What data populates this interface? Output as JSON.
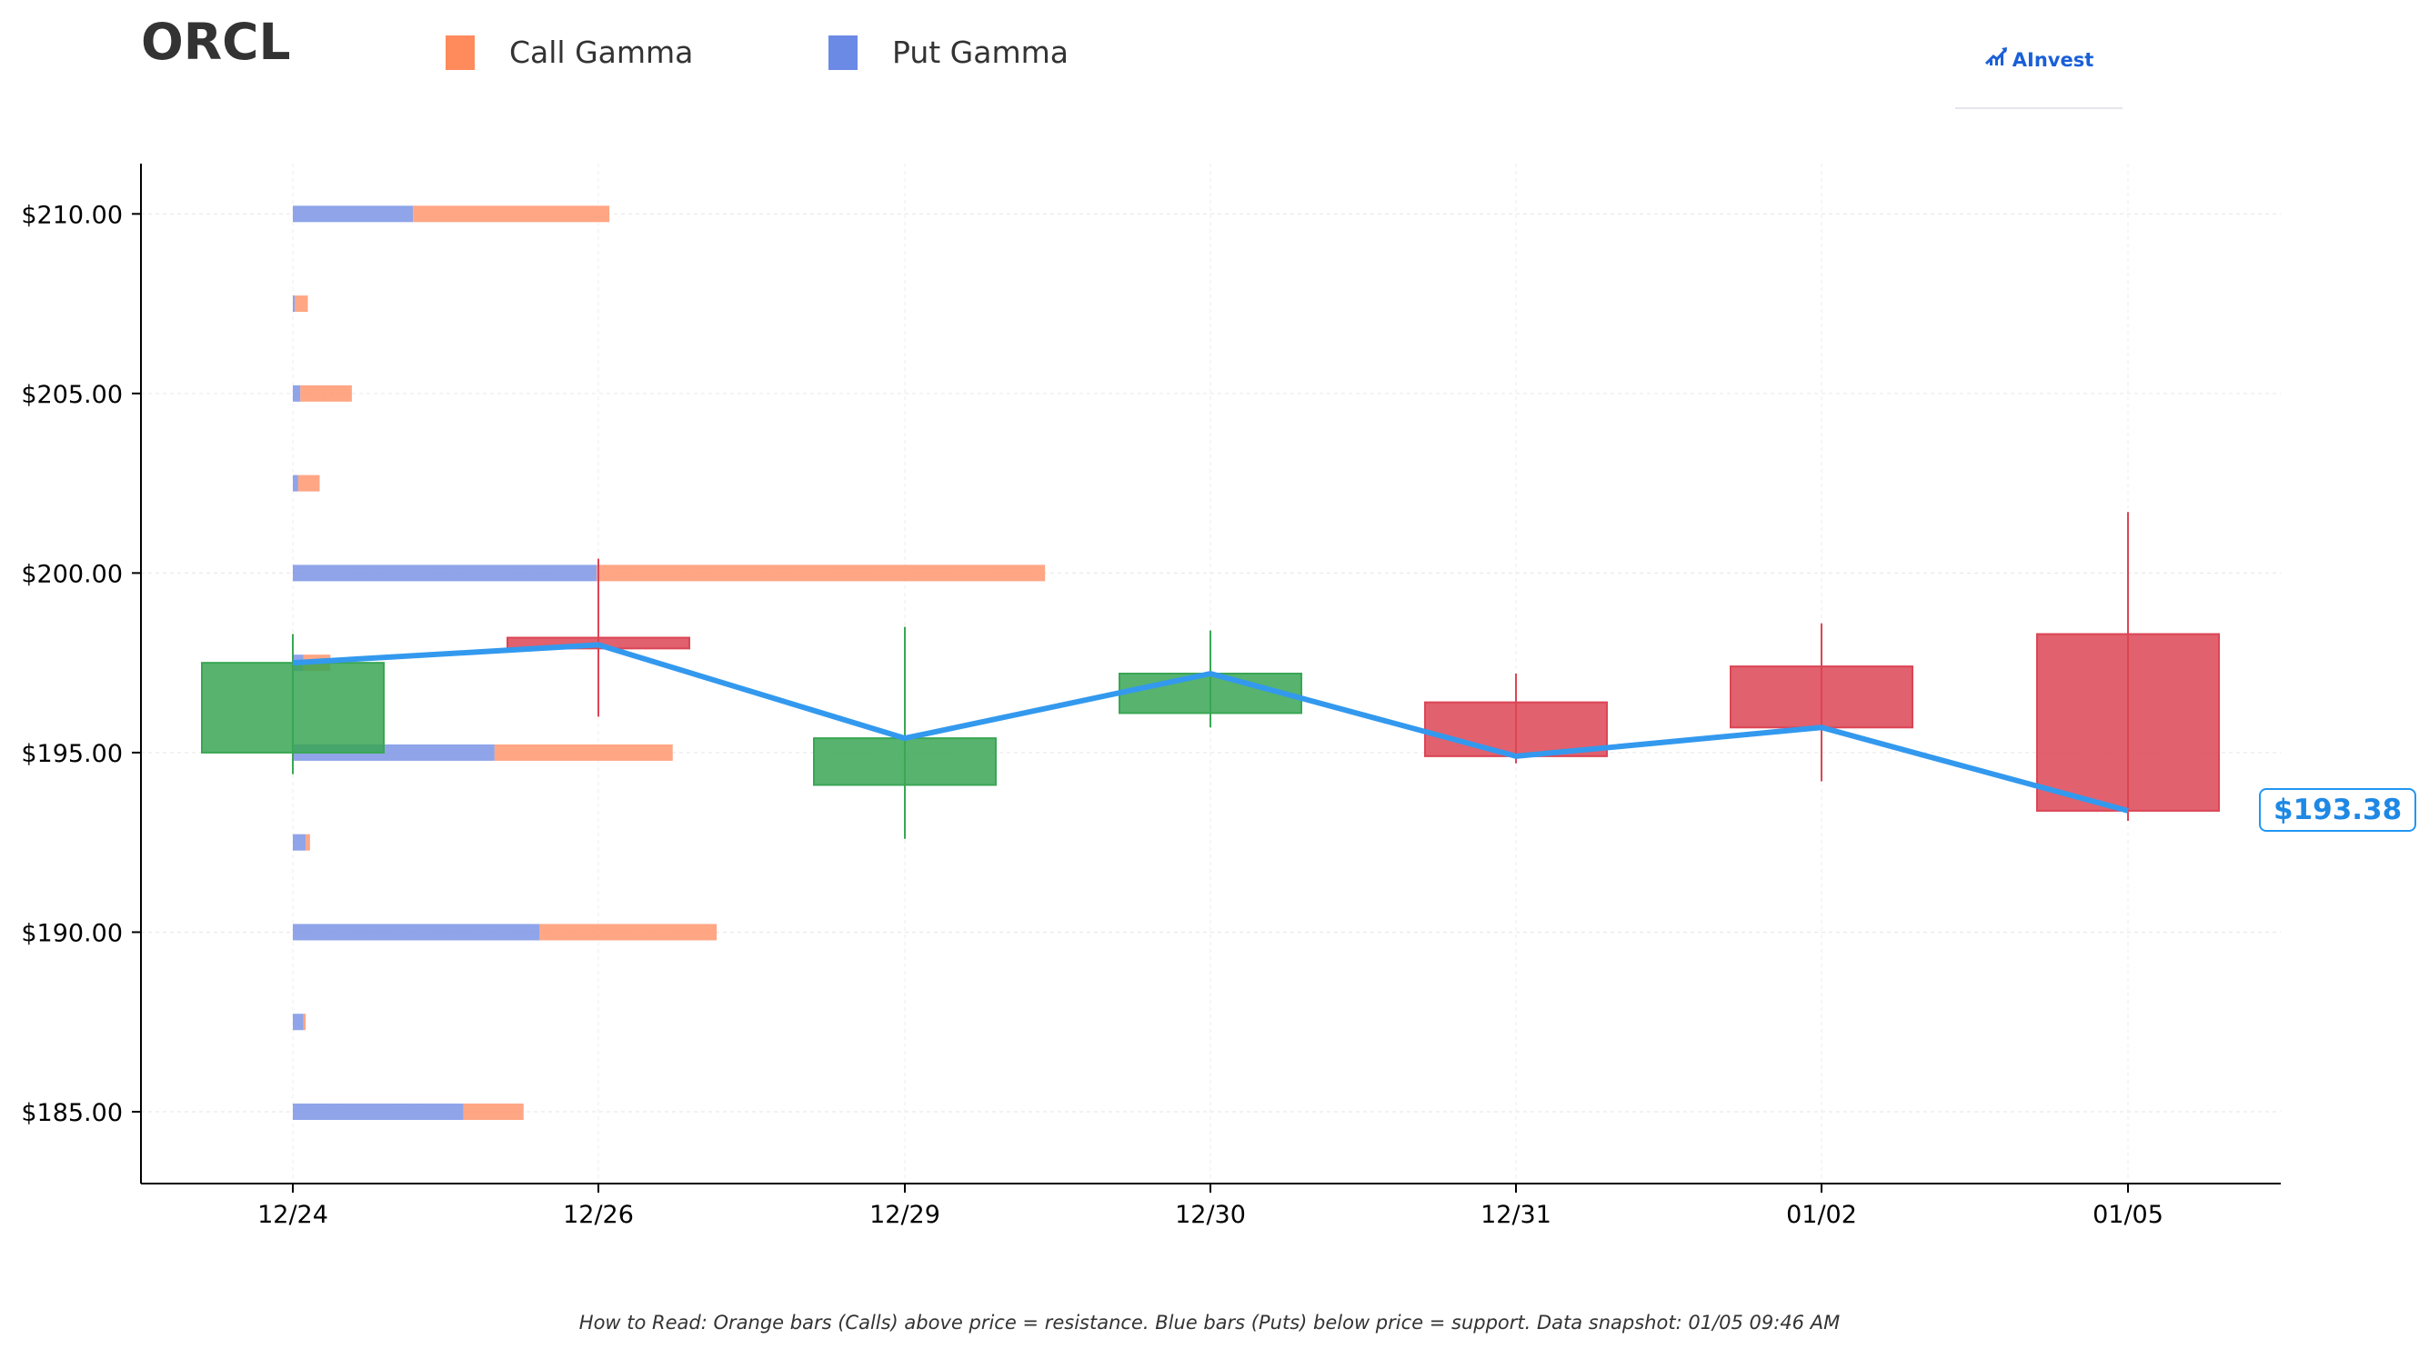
{
  "ticker": "ORCL",
  "legend": [
    {
      "label": "Call Gamma",
      "color": "#ff8a5c"
    },
    {
      "label": "Put Gamma",
      "color": "#6b8ae6"
    }
  ],
  "brand": {
    "name": "AInvest",
    "icon": "chart-bars-icon",
    "color": "#1a5fd8"
  },
  "footer_note": "How to Read: Orange bars (Calls) above price = resistance. Blue bars (Puts) below price = support. Data snapshot: 01/05 09:46 AM",
  "last_price_label": "$193.38",
  "chart_data": {
    "type": "candlestick",
    "categories": [
      "12/24",
      "12/26",
      "12/29",
      "12/30",
      "12/31",
      "01/02",
      "01/05"
    ],
    "ohlc": [
      {
        "date": "12/24",
        "open": 195.0,
        "high": 198.3,
        "low": 194.4,
        "close": 197.5
      },
      {
        "date": "12/26",
        "open": 198.2,
        "high": 200.4,
        "low": 196.0,
        "close": 197.9
      },
      {
        "date": "12/29",
        "open": 194.1,
        "high": 198.5,
        "low": 192.6,
        "close": 195.4
      },
      {
        "date": "12/30",
        "open": 196.1,
        "high": 198.4,
        "low": 195.7,
        "close": 197.2
      },
      {
        "date": "12/31",
        "open": 196.4,
        "high": 197.2,
        "low": 194.7,
        "close": 194.9
      },
      {
        "date": "01/02",
        "open": 197.4,
        "high": 198.6,
        "low": 194.2,
        "close": 195.7
      },
      {
        "date": "01/05",
        "open": 198.3,
        "high": 201.7,
        "low": 193.1,
        "close": 193.38
      }
    ],
    "price_line": [
      197.5,
      198.0,
      195.4,
      197.2,
      194.9,
      195.7,
      193.38
    ],
    "gamma_strikes": [
      185,
      187.5,
      190,
      192.5,
      195,
      197.5,
      200,
      202.5,
      205,
      207.5,
      210
    ],
    "gamma_series": [
      {
        "name": "Put Gamma",
        "values": [
          1.59,
          0.1,
          2.3,
          0.12,
          1.88,
          0.1,
          2.83,
          0.05,
          0.07,
          0.02,
          1.12
        ]
      },
      {
        "name": "Call Gamma",
        "values": [
          0.56,
          0.02,
          1.65,
          0.04,
          1.66,
          0.25,
          4.18,
          0.2,
          0.48,
          0.12,
          1.83
        ]
      }
    ],
    "y_ticks": [
      "$185.00",
      "$190.00",
      "$195.00",
      "$200.00",
      "$205.00",
      "$210.00"
    ],
    "y_tick_values": [
      185,
      190,
      195,
      200,
      205,
      210
    ],
    "ylim": [
      183.0,
      211.4
    ],
    "grid": true,
    "legend_position": "top",
    "colors": {
      "up": "#3aa655",
      "down": "#dc4555",
      "price_line": "#3399ee",
      "call": "#ff9a74",
      "put": "#7f97e6"
    }
  }
}
